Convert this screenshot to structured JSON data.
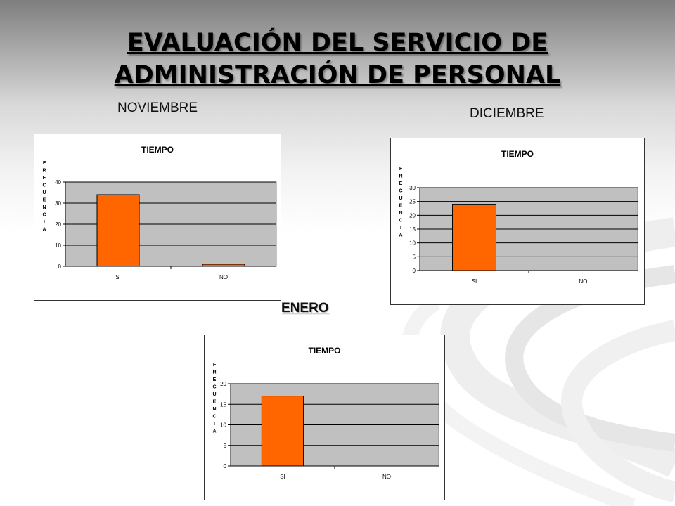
{
  "page": {
    "title_line1": "EVALUACIÓN DEL SERVICIO DE",
    "title_line2": "ADMINISTRACIÓN DE PERSONAL"
  },
  "months": {
    "nov": "NOVIEMBRE",
    "dic": "DICIEMBRE",
    "ene": "ENERO"
  },
  "colors": {
    "bar": "#ff6600",
    "plot_bg": "#c0c0c0"
  },
  "chart_data": [
    {
      "type": "bar",
      "title": "TIEMPO",
      "ylabel": "FRECUENCIA",
      "xlabel": "",
      "categories": [
        "SI",
        "NO"
      ],
      "values": [
        34,
        1
      ],
      "ylim": [
        0,
        40
      ],
      "yticks": [
        0,
        10,
        20,
        30,
        40
      ],
      "grid": true
    },
    {
      "type": "bar",
      "title": "TIEMPO",
      "ylabel": "FRECUENCIA",
      "xlabel": "",
      "categories": [
        "SI",
        "NO"
      ],
      "values": [
        24,
        0
      ],
      "ylim": [
        0,
        30
      ],
      "yticks": [
        0,
        5,
        10,
        15,
        20,
        25,
        30
      ],
      "grid": true
    },
    {
      "type": "bar",
      "title": "TIEMPO",
      "ylabel": "FRECUENCIA",
      "xlabel": "",
      "categories": [
        "SI",
        "NO"
      ],
      "values": [
        17,
        0
      ],
      "ylim": [
        0,
        20
      ],
      "yticks": [
        0,
        5,
        10,
        15,
        20
      ],
      "grid": true
    }
  ]
}
